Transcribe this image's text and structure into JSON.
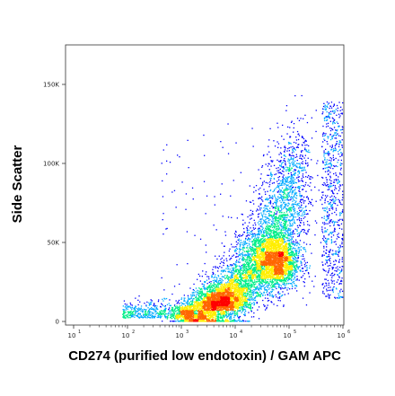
{
  "chart_data": {
    "type": "scatter",
    "style": "flow cytometry density dot plot (pseudocolor)",
    "xlabel": "CD274 (purified low endotoxin) / GAM APC",
    "ylabel": "Side Scatter",
    "x_scale": "log",
    "xlim": [
      10,
      1000000
    ],
    "x_ticks": [
      {
        "base": "10",
        "exp": "1"
      },
      {
        "base": "10",
        "exp": "2"
      },
      {
        "base": "10",
        "exp": "3"
      },
      {
        "base": "10",
        "exp": "4"
      },
      {
        "base": "10",
        "exp": "5"
      },
      {
        "base": "10",
        "exp": "6"
      }
    ],
    "y_scale": "linear",
    "ylim": [
      0,
      175000
    ],
    "y_ticks": [
      {
        "value": 0,
        "label": "0"
      },
      {
        "value": 50000,
        "label": "50K"
      },
      {
        "value": 100000,
        "label": "100K"
      },
      {
        "value": 150000,
        "label": "150K"
      }
    ],
    "populations": [
      {
        "description": "main population",
        "x_center": 60000,
        "y_center": 38000,
        "density": "highest (red)"
      },
      {
        "description": "lower-left tail",
        "x_center": 3000,
        "y_center": 10000,
        "density": "high (yellow/green)"
      },
      {
        "description": "sparse low events",
        "x_center": 200,
        "y_center": 6000,
        "density": "low (blue)"
      }
    ],
    "color_scale": [
      "#0000ff",
      "#00aaff",
      "#00ee88",
      "#ffee00",
      "#ff6600",
      "#ff0000"
    ],
    "grid": false,
    "legend": "none"
  }
}
